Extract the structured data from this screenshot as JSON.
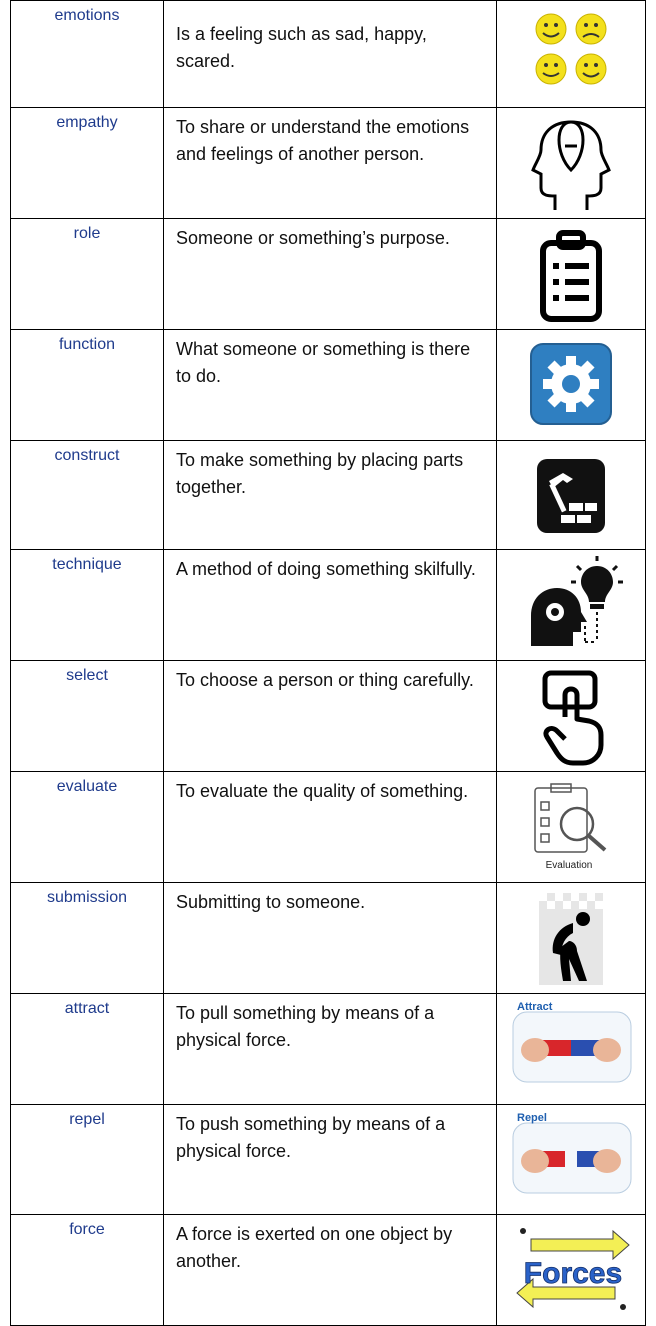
{
  "table": {
    "rows": [
      {
        "term": "emotions",
        "definition": "Is a feeling such as sad, happy, scared."
      },
      {
        "term": "empathy",
        "definition": "To share or understand the emotions and feelings of another person."
      },
      {
        "term": "role",
        "definition": "Someone or something’s purpose."
      },
      {
        "term": "function",
        "definition": "What someone or something is there to do."
      },
      {
        "term": "construct",
        "definition": "To make something by placing parts together."
      },
      {
        "term": "technique",
        "definition": "A method of doing something skilfully."
      },
      {
        "term": "select",
        "definition": "To choose a person or thing carefully."
      },
      {
        "term": "evaluate",
        "definition": "To evaluate the quality of something.",
        "icon_label": "Evaluation"
      },
      {
        "term": "submission",
        "definition": "Submitting to someone."
      },
      {
        "term": "attract",
        "definition": "To pull something by means of a physical force.",
        "icon_label": "Attract"
      },
      {
        "term": "repel",
        "definition": "To push something by means of a physical force.",
        "icon_label": "Repel"
      },
      {
        "term": "force",
        "definition": "A force is exerted on one object by another.",
        "icon_label": "Forces"
      }
    ]
  }
}
